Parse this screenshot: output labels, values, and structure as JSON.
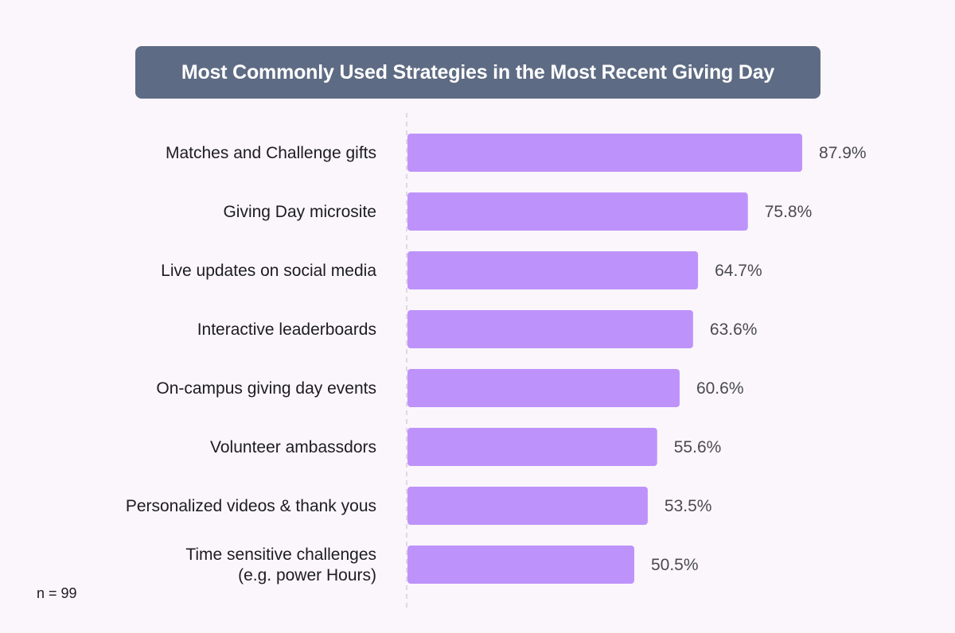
{
  "chart_data": {
    "type": "bar",
    "orientation": "horizontal",
    "title": "Most Commonly Used Strategies in the Most Recent Giving Day",
    "categories": [
      [
        "Matches and Challenge gifts"
      ],
      [
        "Giving Day microsite"
      ],
      [
        "Live updates on social media"
      ],
      [
        "Interactive leaderboards"
      ],
      [
        "On-campus giving day events"
      ],
      [
        "Volunteer ambassdors"
      ],
      [
        "Personalized videos & thank yous"
      ],
      [
        "Time sensitive challenges",
        "(e.g. power Hours)"
      ]
    ],
    "values": [
      87.9,
      75.8,
      64.7,
      63.6,
      60.6,
      55.6,
      53.5,
      50.5
    ],
    "value_labels": [
      "87.9%",
      "75.8%",
      "64.7%",
      "63.6%",
      "60.6%",
      "55.6%",
      "53.5%",
      "50.5%"
    ],
    "xlim": [
      0,
      100
    ],
    "xlabel": "",
    "ylabel": "",
    "grid": false,
    "bar_color": "#bd93fb",
    "footnote": "n = 99"
  }
}
